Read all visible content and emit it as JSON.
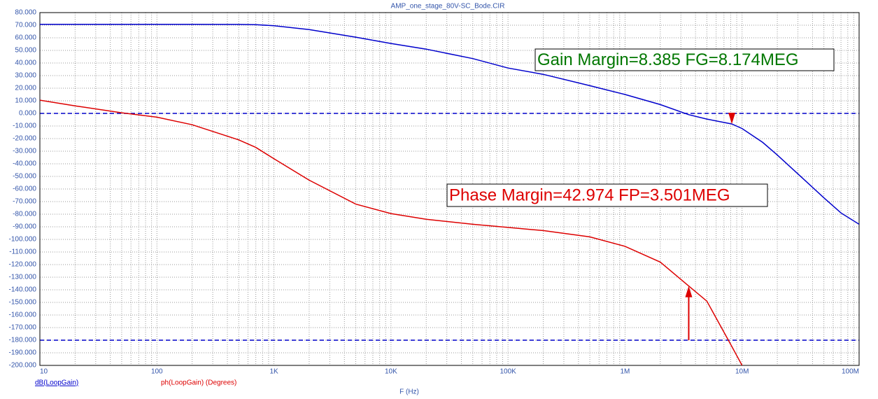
{
  "chart_data": {
    "type": "line",
    "title": "AMP_one_stage_80V-SC_Bode.CIR",
    "xlabel": "F (Hz)",
    "xscale": "log",
    "grid": true,
    "x": [
      10,
      20,
      50,
      100,
      200,
      500,
      700,
      1000,
      2000,
      5000,
      10000,
      20000,
      50000,
      100000,
      200000,
      500000,
      1000000,
      2000000,
      3500000,
      5000000,
      8174000,
      10000000,
      15000000,
      20000000,
      30000000,
      50000000,
      70000000,
      100000000
    ],
    "series": [
      {
        "name": "dB(LoopGain)",
        "color": "#0000cc",
        "values": [
          70.7,
          70.7,
          70.7,
          70.7,
          70.7,
          70.6,
          70.4,
          69.6,
          66.5,
          60.5,
          55.5,
          51,
          43.5,
          36,
          31,
          22,
          15,
          7,
          -1,
          -4.5,
          -8.4,
          -12,
          -23,
          -33,
          -48,
          -67,
          -79,
          -88
        ]
      },
      {
        "name": "ph(LoopGain) (Degrees)",
        "color": "#dd0000",
        "values": [
          10.5,
          6,
          0.5,
          -3,
          -9,
          -21,
          -27,
          -36,
          -53,
          -72,
          -79.5,
          -84,
          -88,
          -90.5,
          -93,
          -98,
          -105.5,
          -118,
          -137,
          -149,
          -185,
          -200,
          null,
          null,
          null,
          null,
          null,
          null
        ]
      }
    ],
    "xlim": [
      10,
      100000000
    ],
    "xticks": [
      10,
      100,
      {
        "value": 1000,
        "label": "1K"
      },
      {
        "value": 10000,
        "label": "10K"
      },
      {
        "value": 100000,
        "label": "100K"
      },
      {
        "value": 1000000,
        "label": "1M"
      },
      {
        "value": 10000000,
        "label": "10M"
      },
      {
        "value": 100000000,
        "label": "100M"
      }
    ],
    "ylim": [
      -200,
      80
    ],
    "yticks": [
      {
        "value": 80,
        "label": "80.000"
      },
      {
        "value": 70,
        "label": "70.000"
      },
      {
        "value": 60,
        "label": "60.000"
      },
      {
        "value": 50,
        "label": "50.000"
      },
      {
        "value": 40,
        "label": "40.000"
      },
      {
        "value": 30,
        "label": "30.000"
      },
      {
        "value": 20,
        "label": "20.000"
      },
      {
        "value": 10,
        "label": "10.000"
      },
      {
        "value": 0,
        "label": "0.000"
      },
      {
        "value": -10,
        "label": "-10.000"
      },
      {
        "value": -20,
        "label": "-20.000"
      },
      {
        "value": -30,
        "label": "-30.000"
      },
      {
        "value": -40,
        "label": "-40.000"
      },
      {
        "value": -50,
        "label": "-50.000"
      },
      {
        "value": -60,
        "label": "-60.000"
      },
      {
        "value": -70,
        "label": "-70.000"
      },
      {
        "value": -80,
        "label": "-80.000"
      },
      {
        "value": -90,
        "label": "-90.000"
      },
      {
        "value": -100,
        "label": "-100.000"
      },
      {
        "value": -110,
        "label": "-110.000"
      },
      {
        "value": -120,
        "label": "-120.000"
      },
      {
        "value": -130,
        "label": "-130.000"
      },
      {
        "value": -140,
        "label": "-140.000"
      },
      {
        "value": -150,
        "label": "-150.000"
      },
      {
        "value": -160,
        "label": "-160.000"
      },
      {
        "value": -170,
        "label": "-170.000"
      },
      {
        "value": -180,
        "label": "-180.000"
      },
      {
        "value": -190,
        "label": "-190.000"
      },
      {
        "value": -200,
        "label": "-200.000"
      }
    ],
    "reference_lines": [
      0,
      -180
    ],
    "reference_color": "#0000cc",
    "annotations": [
      {
        "text": "Gain Margin=8.385 FG=8.174MEG",
        "color": "#007700",
        "arrow_color": "#dd0000",
        "x": 8174000,
        "from": 0,
        "to": -8.385
      },
      {
        "text": "Phase Margin=42.974 FP=3.501MEG",
        "color": "#dd0000",
        "arrow_color": "#dd0000",
        "x": 3501000,
        "from": -180,
        "to": -137.026
      }
    ]
  }
}
